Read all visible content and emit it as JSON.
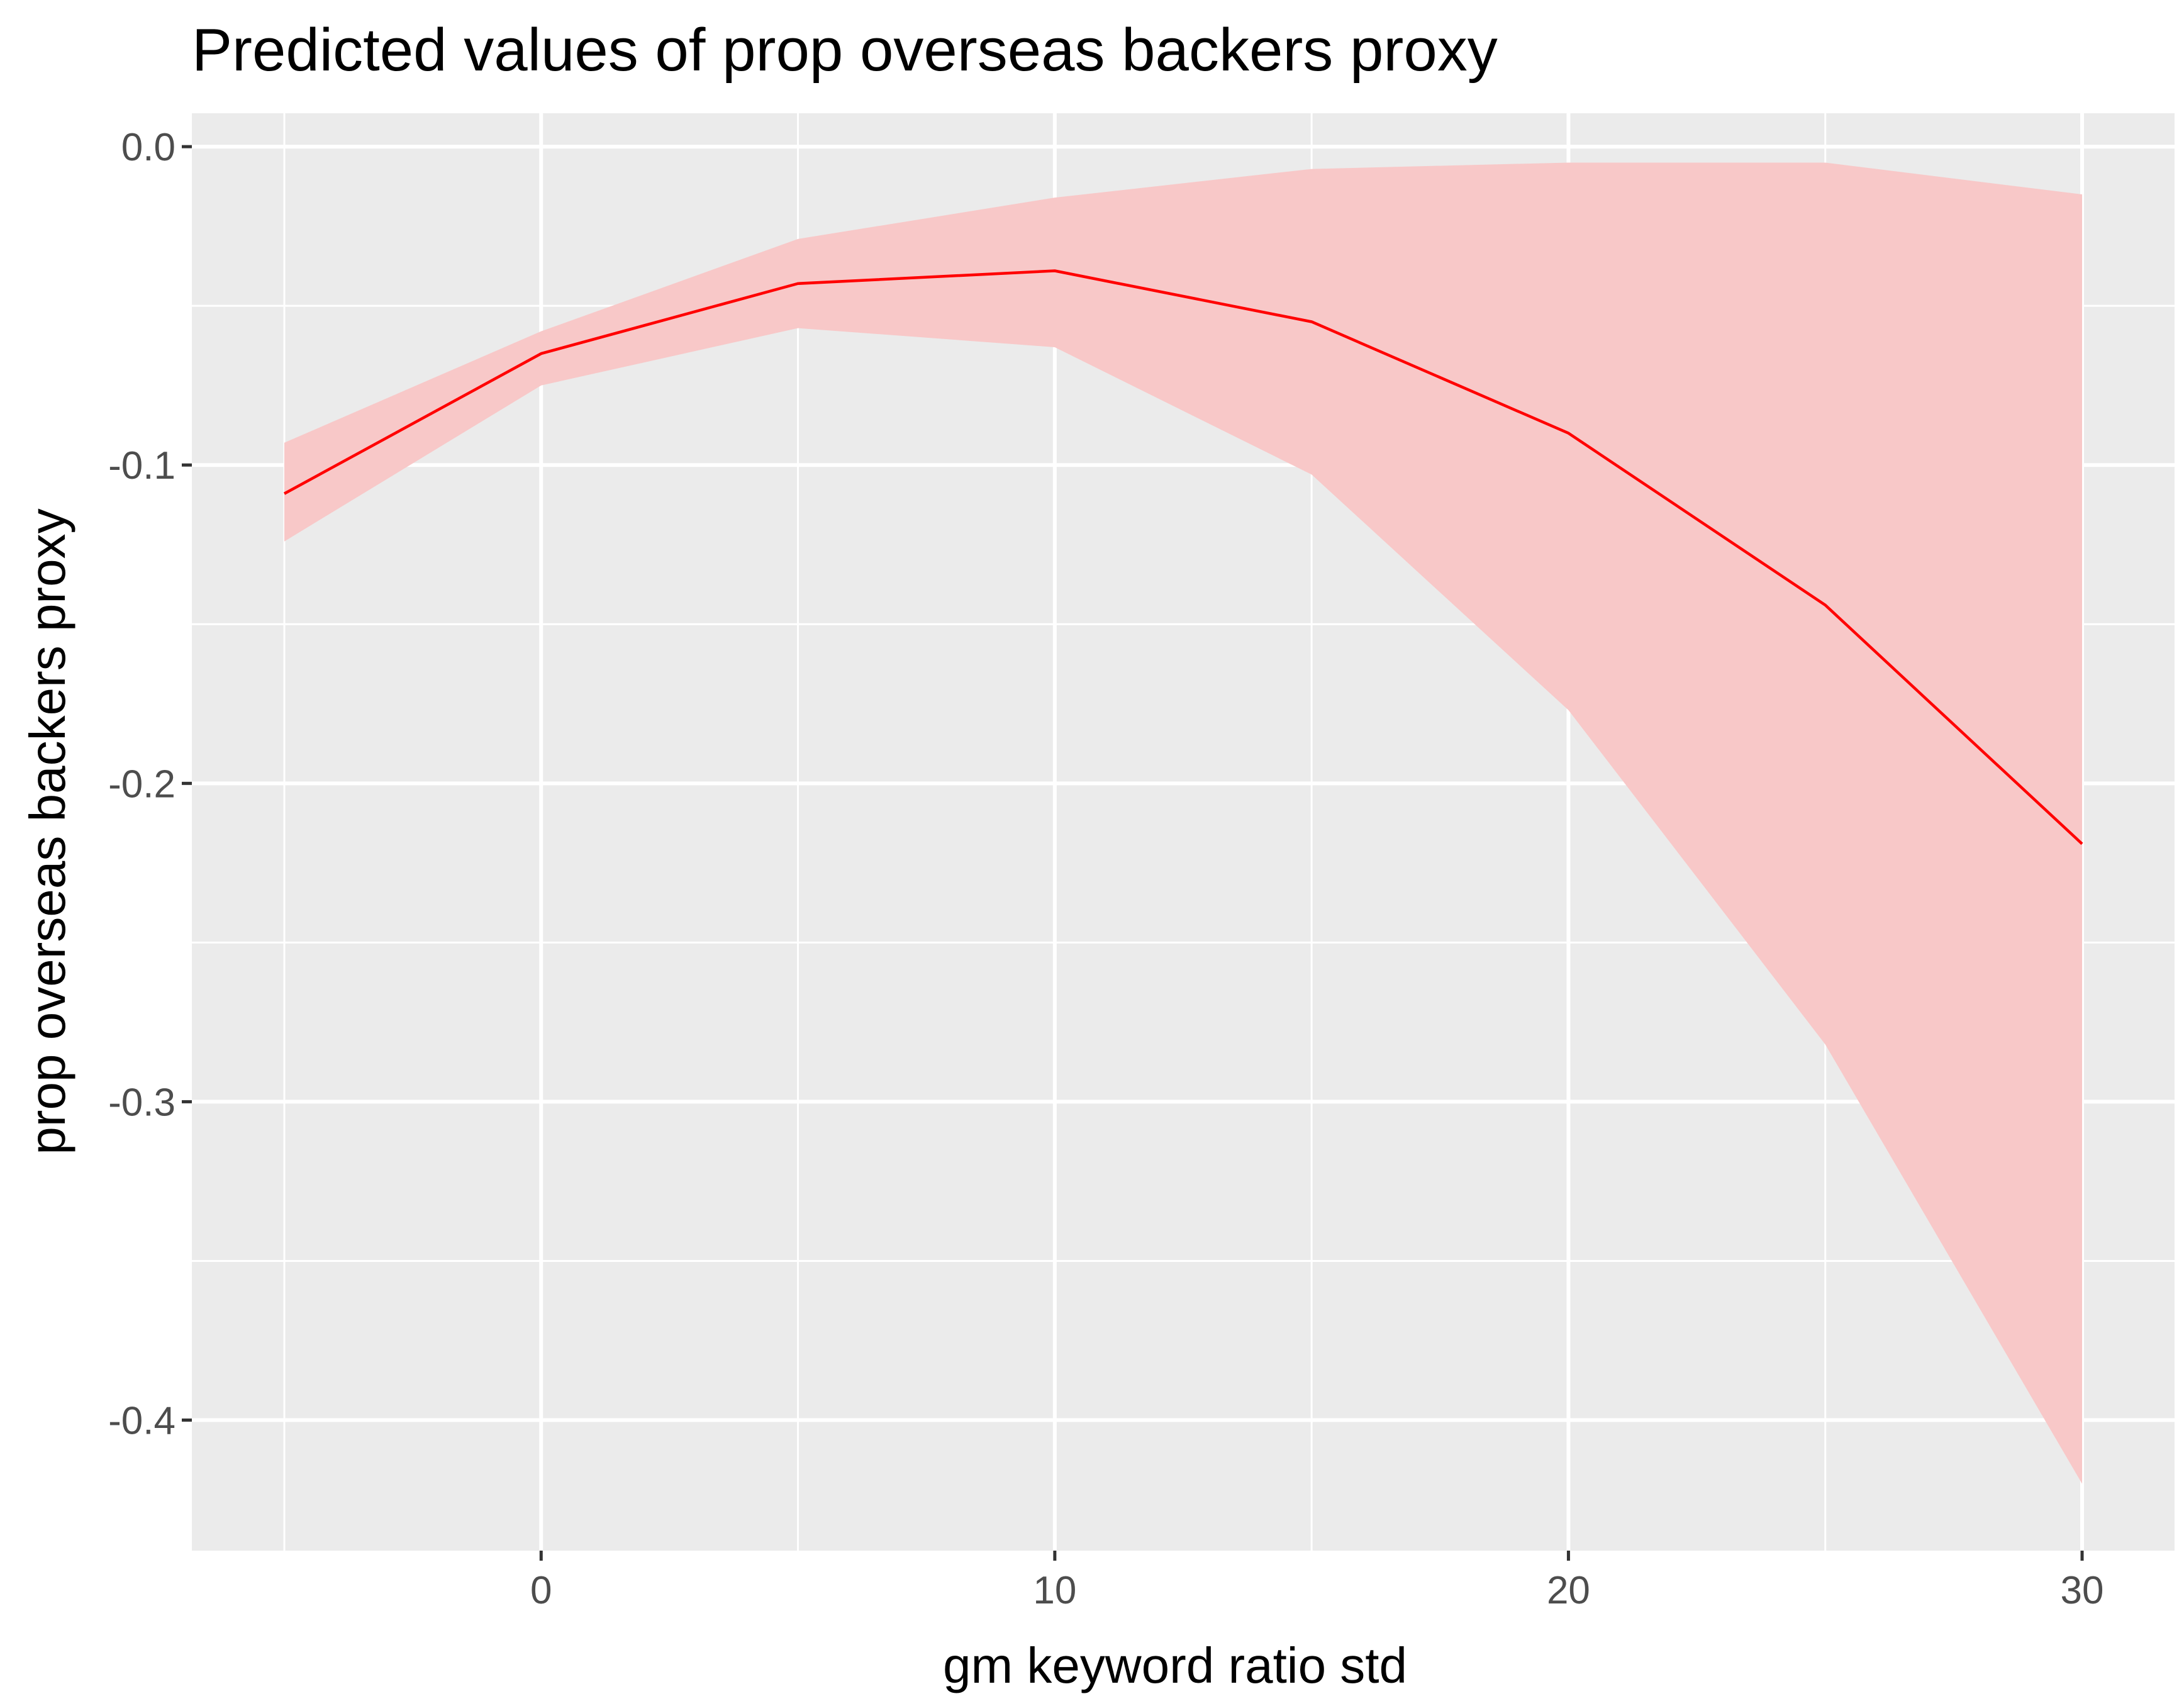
{
  "chart_data": {
    "type": "line",
    "title": "Predicted values of prop overseas backers proxy",
    "xlabel": "gm keyword ratio std",
    "ylabel": "prop overseas backers proxy",
    "xlim": [
      -6.8,
      31.8
    ],
    "ylim": [
      -0.441,
      0.0105
    ],
    "x_ticks": [
      0,
      10,
      20,
      30
    ],
    "x_tick_labels": [
      "0",
      "10",
      "20",
      "30"
    ],
    "y_ticks": [
      0.0,
      -0.1,
      -0.2,
      -0.3,
      -0.4
    ],
    "y_tick_labels": [
      "0.0",
      "-0.1",
      "-0.2",
      "-0.3",
      "-0.4"
    ],
    "grid": true,
    "legend": "none",
    "x": [
      -5,
      0,
      5,
      10,
      15,
      20,
      25,
      30
    ],
    "series": [
      {
        "values": [
          -0.109,
          -0.065,
          -0.043,
          -0.039,
          -0.055,
          -0.09,
          -0.144,
          -0.219
        ],
        "lower": [
          -0.124,
          -0.075,
          -0.057,
          -0.063,
          -0.103,
          -0.177,
          -0.282,
          -0.42
        ],
        "upper": [
          -0.093,
          -0.058,
          -0.029,
          -0.016,
          -0.007,
          -0.005,
          -0.005,
          -0.015
        ],
        "color": "#ff0000",
        "band_color": "#f8c8c8"
      }
    ],
    "panel_background": "#ebebeb",
    "grid_color": "#ffffff"
  }
}
